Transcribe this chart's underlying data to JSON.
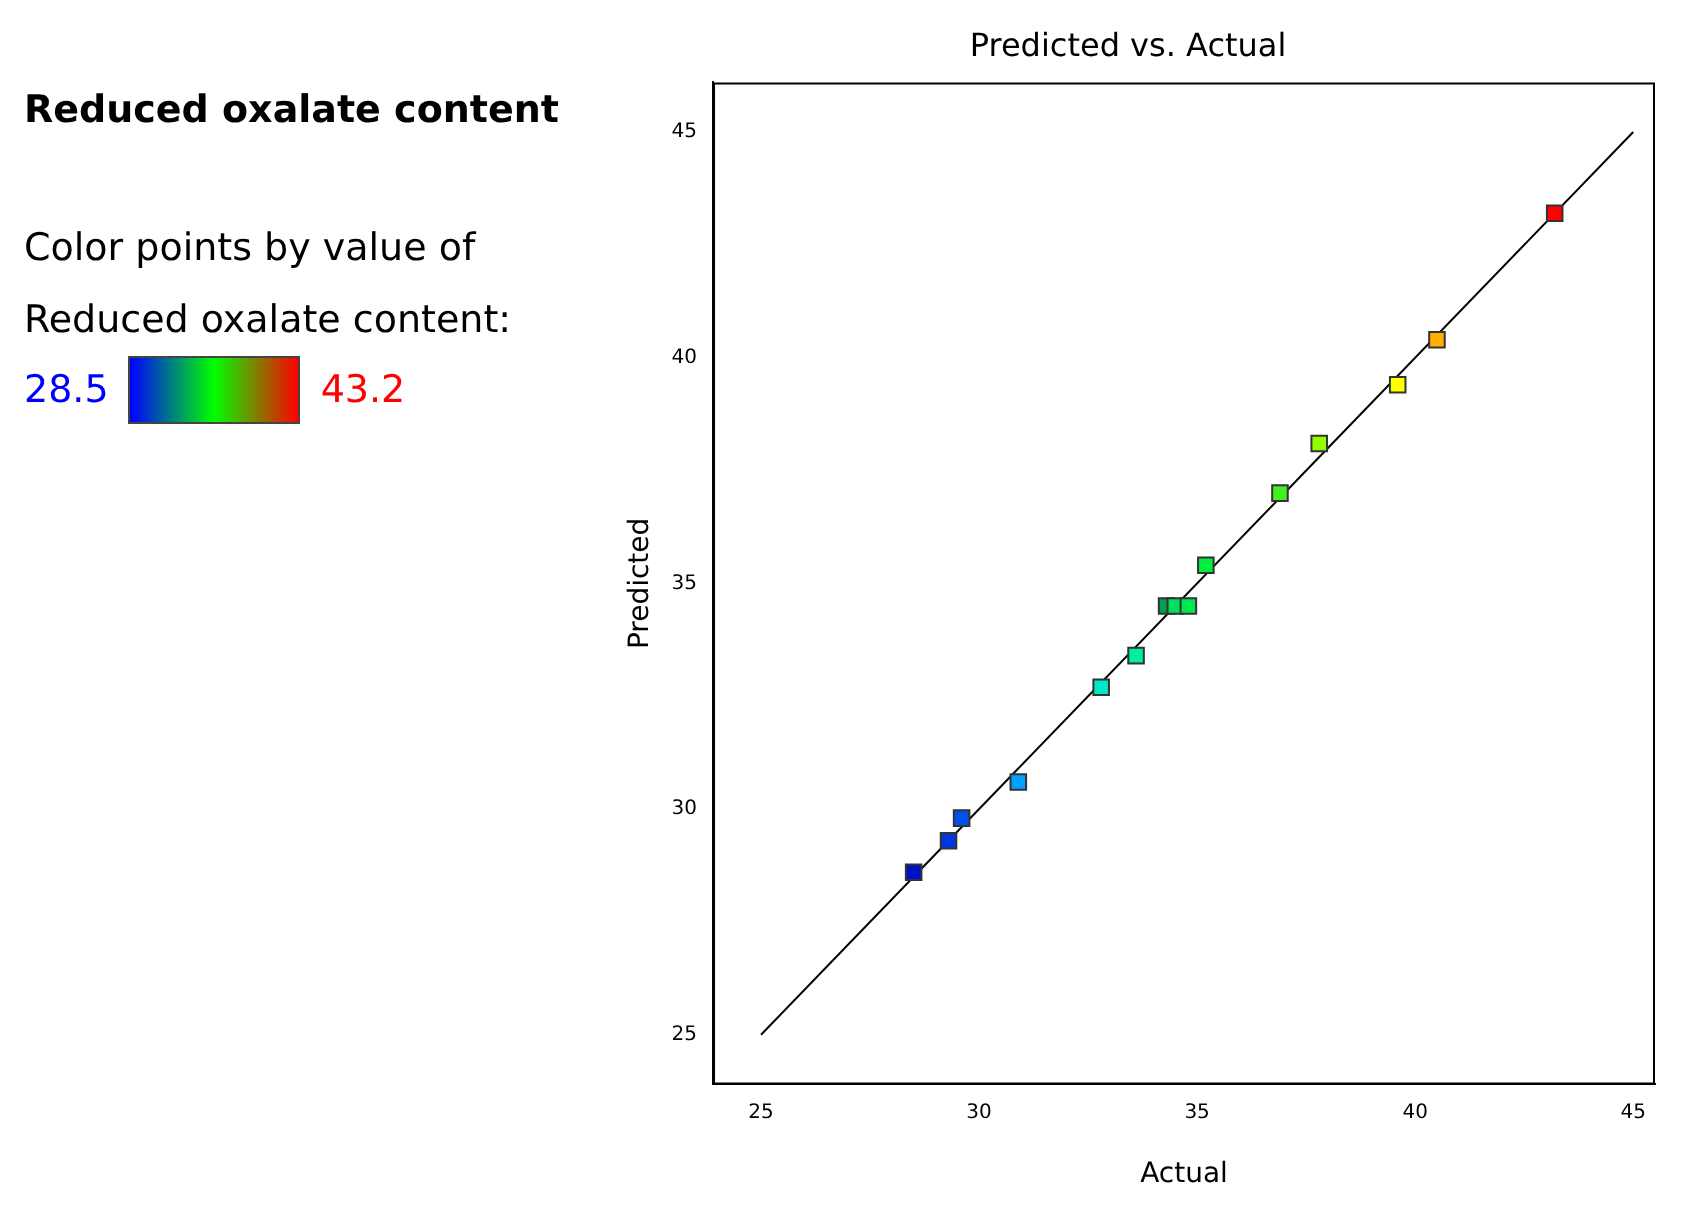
{
  "chart_data": {
    "type": "scatter",
    "title": "Predicted vs. Actual",
    "subtitle": "Reduced oxalate content",
    "clabel": "Color points by value of Reduced oxalate content:",
    "annotations": [
      "28.5",
      "43.2"
    ],
    "xlabel": "Actual",
    "ylabel": "Predicted",
    "xlim": [
      23.9,
      45.5
    ],
    "ylim": [
      23.9,
      46.1
    ],
    "xticks": [
      25,
      30,
      35,
      40,
      45
    ],
    "yticks": [
      25,
      30,
      35,
      40,
      45
    ],
    "grid": false,
    "marker": "square",
    "series": [
      {
        "x": [
          28.5,
          29.3,
          29.6,
          30.9,
          32.8,
          33.6,
          34.3,
          34.5,
          34.8,
          35.2,
          36.9,
          37.8,
          39.6,
          40.5,
          43.2
        ],
        "values": [
          28.6,
          29.3,
          29.8,
          30.6,
          32.7,
          33.4,
          34.5,
          34.5,
          34.5,
          35.4,
          37.0,
          38.1,
          39.4,
          40.4,
          43.2
        ],
        "colors": [
          "#0010c8",
          "#0035e0",
          "#0050f0",
          "#00a0ff",
          "#00e8c8",
          "#00f0a0",
          "#00a050",
          "#00e060",
          "#00e850",
          "#00f040",
          "#40f020",
          "#90ff00",
          "#ffff00",
          "#ffb000",
          "#ff0000"
        ]
      },
      {
        "type": "line",
        "x": [
          25,
          45
        ],
        "values": [
          25,
          45
        ],
        "color": "#000000",
        "marker": "none"
      }
    ]
  }
}
